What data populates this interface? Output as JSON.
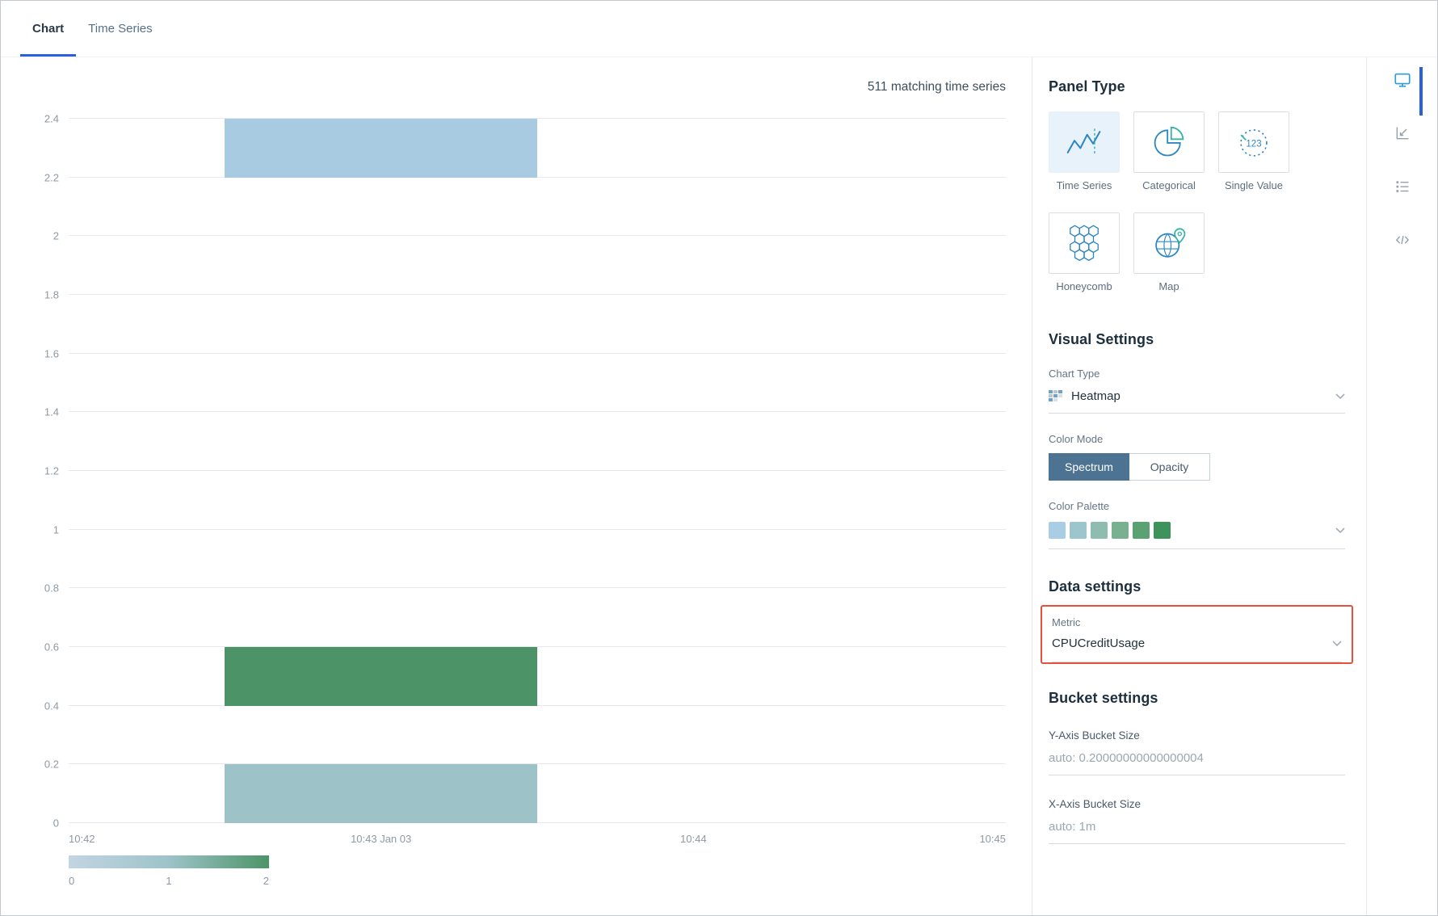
{
  "tabs": [
    {
      "label": "Chart"
    },
    {
      "label": "Time Series"
    }
  ],
  "chart_data": {
    "type": "heatmap",
    "matching_label": "511 matching time series",
    "ylim": [
      0,
      2.4
    ],
    "yticks": [
      0,
      0.2,
      0.4,
      0.6,
      0.8,
      1,
      1.2,
      1.4,
      1.6,
      1.8,
      2,
      2.2,
      2.4
    ],
    "xlim_minutes": [
      0,
      3
    ],
    "xticks": [
      {
        "pos": 0,
        "label": "10:42"
      },
      {
        "pos": 1,
        "label": "10:43 Jan 03"
      },
      {
        "pos": 2,
        "label": "10:44"
      },
      {
        "pos": 3,
        "label": "10:45"
      }
    ],
    "cells": [
      {
        "x0": 0.5,
        "x1": 1.5,
        "y0": 2.2,
        "y1": 2.4,
        "color": "#a8cbe2"
      },
      {
        "x0": 0.5,
        "x1": 1.5,
        "y0": 0.4,
        "y1": 0.6,
        "color": "#4c9467"
      },
      {
        "x0": 0.5,
        "x1": 1.5,
        "y0": 0.0,
        "y1": 0.2,
        "color": "#9dc3c9"
      }
    ],
    "colorbar": {
      "ticks": [
        "0",
        "1",
        "2"
      ],
      "gradient": [
        "#c2d5e2",
        "#9dc3c9",
        "#4c9467"
      ]
    }
  },
  "panel_type": {
    "heading": "Panel Type",
    "gauge_text": "123",
    "options": [
      {
        "label": "Time Series",
        "selected": true
      },
      {
        "label": "Categorical",
        "selected": false
      },
      {
        "label": "Single Value",
        "selected": false
      },
      {
        "label": "Honeycomb",
        "selected": false
      },
      {
        "label": "Map",
        "selected": false
      }
    ]
  },
  "visual_settings": {
    "heading": "Visual Settings",
    "chart_type_label": "Chart Type",
    "chart_type_value": "Heatmap",
    "color_mode_label": "Color Mode",
    "color_mode_options": [
      "Spectrum",
      "Opacity"
    ],
    "color_mode_selected": "Spectrum",
    "color_palette_label": "Color Palette",
    "palette": [
      "#a9cde5",
      "#9cc5cd",
      "#8ebcae",
      "#78b090",
      "#5aa274",
      "#3e935c"
    ]
  },
  "data_settings": {
    "heading": "Data settings",
    "metric_label": "Metric",
    "metric_value": "CPUCreditUsage"
  },
  "bucket_settings": {
    "heading": "Bucket settings",
    "y_label": "Y-Axis Bucket Size",
    "y_value": "auto: 0.20000000000000004",
    "x_label": "X-Axis Bucket Size",
    "x_value": "auto: 1m"
  },
  "colors": {
    "tab_accent": "#2a5fe0",
    "rail_active_indicator": "#2a5fe0",
    "metric_highlight_border": "#e4523b",
    "spectrum_button_bg": "#4d7392",
    "icon_blue": "#2e86c3",
    "icon_teal": "#39b3a6"
  }
}
